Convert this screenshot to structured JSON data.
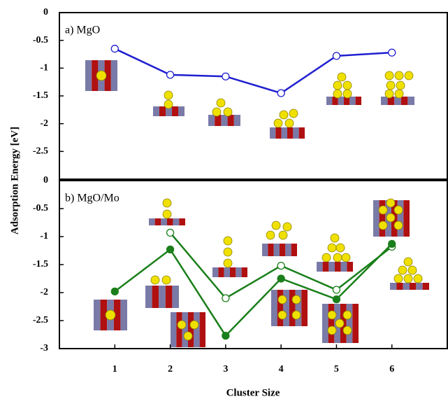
{
  "chart_data": [
    {
      "type": "line",
      "title": "a) MgO",
      "ylabel": "Adsorption Energy [eV]",
      "x": [
        1,
        2,
        3,
        4,
        5,
        6
      ],
      "xlim": [
        0,
        7
      ],
      "ylim": [
        -3,
        0
      ],
      "yticks": [
        0,
        -0.5,
        -1,
        -1.5,
        -2,
        -2.5
      ],
      "series": [
        {
          "color": "#1f1fd0",
          "marker": "open",
          "values": [
            -0.65,
            -1.12,
            -1.15,
            -1.45,
            -0.78,
            -0.72
          ]
        }
      ]
    },
    {
      "type": "line",
      "title": "b) MgO/Mo",
      "xlabel": "Cluster Size",
      "x": [
        1,
        2,
        3,
        4,
        5,
        6
      ],
      "xlim": [
        0,
        7
      ],
      "xticks": [
        1,
        2,
        3,
        4,
        5,
        6
      ],
      "ylim": [
        -3,
        0
      ],
      "yticks": [
        0,
        -0.5,
        -1,
        -1.5,
        -2,
        -2.5,
        -3
      ],
      "series": [
        {
          "color": "#1a7f1a",
          "marker": "open",
          "values": [
            null,
            -0.93,
            -2.1,
            -1.52,
            -1.95,
            -1.18
          ]
        },
        {
          "color": "#1a7f1a",
          "marker": "filled",
          "values": [
            -1.98,
            -1.23,
            -2.77,
            -1.75,
            -2.12,
            -1.13
          ]
        }
      ]
    }
  ]
}
